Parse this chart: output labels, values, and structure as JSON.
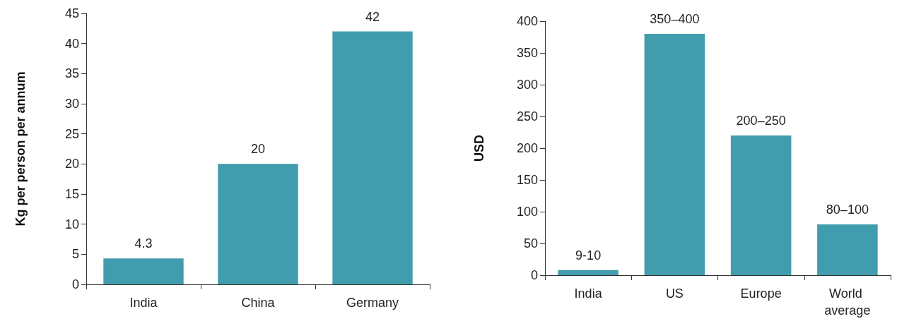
{
  "chart_data": [
    {
      "type": "bar",
      "ylabel": "Kg per person per annum",
      "categories": [
        "India",
        "China",
        "Germany"
      ],
      "values": [
        4.3,
        20,
        42
      ],
      "color": "#419dae",
      "ylim": [
        0,
        45
      ],
      "yticks": [
        0,
        5,
        10,
        15,
        20,
        25,
        30,
        35,
        40,
        45
      ],
      "grid": false,
      "data_labels": true
    },
    {
      "type": "bar",
      "ylabel": "USD",
      "categories": [
        "India",
        "US",
        "Europe",
        "World average"
      ],
      "values": [
        8,
        380,
        220,
        80
      ],
      "color": "#419dae",
      "ylim": [
        0,
        400
      ],
      "yticks": [
        0,
        50,
        100,
        150,
        200,
        250,
        300,
        350,
        400
      ],
      "grid": false,
      "value_labels": [
        "9-10",
        "350–400",
        "200–250",
        "80–100"
      ]
    }
  ]
}
